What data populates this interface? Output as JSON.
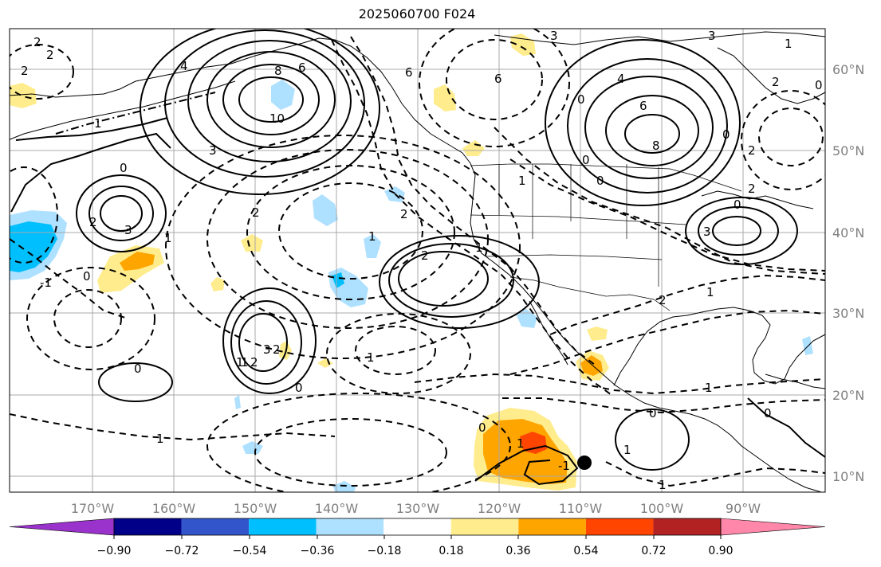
{
  "title": "2025060700 F024",
  "lon_labels": [
    "170°W",
    "160°W",
    "150°W",
    "140°W",
    "130°W",
    "120°W",
    "110°W",
    "100°W",
    "90°W"
  ],
  "lat_labels": [
    "60°N",
    "50°N",
    "40°N",
    "30°N",
    "20°N",
    "10°N"
  ],
  "colorbar": {
    "colors": [
      "#9933cc",
      "#000088",
      "#3355cc",
      "#00bfff",
      "#aee0ff",
      "#ffffff",
      "#ffec8c",
      "#ffa500",
      "#ff4500",
      "#b22222",
      "#ff88aa"
    ],
    "tick_labels": [
      "−0.90",
      "−0.72",
      "−0.54",
      "−0.36",
      "−0.18",
      "0.18",
      "0.36",
      "0.54",
      "0.72",
      "0.90"
    ]
  },
  "contour_labels": [
    "2",
    "2",
    "2",
    "4",
    "6",
    "8",
    "10",
    "1",
    "3",
    "2",
    "3",
    "0",
    "-1",
    "0",
    "1",
    "2",
    "1",
    "2",
    "2",
    "3",
    "1",
    "1",
    "2",
    "0",
    "1",
    "2",
    "0",
    "1",
    "-1",
    "6",
    "3",
    "4",
    "6",
    "8",
    "6",
    "0",
    "3",
    "0",
    "0",
    "2",
    "2",
    "0",
    "0",
    "1",
    "1",
    "2",
    "0",
    "1",
    "0",
    "1",
    "1",
    "1",
    "0",
    "2",
    "0",
    "1",
    "3",
    "1"
  ],
  "storm_marker": "tropical-cyclone-center"
}
